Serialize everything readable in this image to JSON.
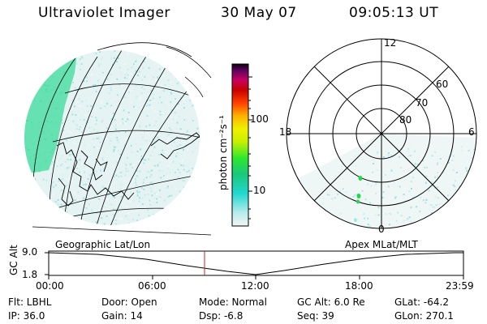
{
  "header": {
    "instrument": "Ultraviolet Imager",
    "date": "30 May 07",
    "time": "09:05:13 UT"
  },
  "colorbar": {
    "unit_label": "photon cm⁻²s⁻¹",
    "ticks": [
      "100",
      "10"
    ]
  },
  "polar_plot": {
    "mlt_labels": [
      "12",
      "18",
      "6",
      "0"
    ],
    "mlat_labels": [
      "60",
      "70",
      "80"
    ]
  },
  "panel_labels": {
    "left": "Geographic Lat/Lon",
    "right": "Apex  MLat/MLT"
  },
  "altitude_plot": {
    "axis_title": "GC Alt",
    "y_ticks": [
      "9.0",
      "1.8"
    ],
    "x_ticks": [
      "00:00",
      "06:00",
      "12:00",
      "18:00",
      "23:59"
    ]
  },
  "info": {
    "filter": "Flt: LBHL",
    "ip": "IP: 36.0",
    "door": "Door: Open",
    "gain": "Gain: 14",
    "mode": "Mode: Normal",
    "dsp": "Dsp:   -6.8",
    "gc_alt": "GC Alt: 6.0 Re",
    "seq": "Seq: 39",
    "glat": "GLat: -64.2",
    "glon": "GLon: 270.1"
  }
}
